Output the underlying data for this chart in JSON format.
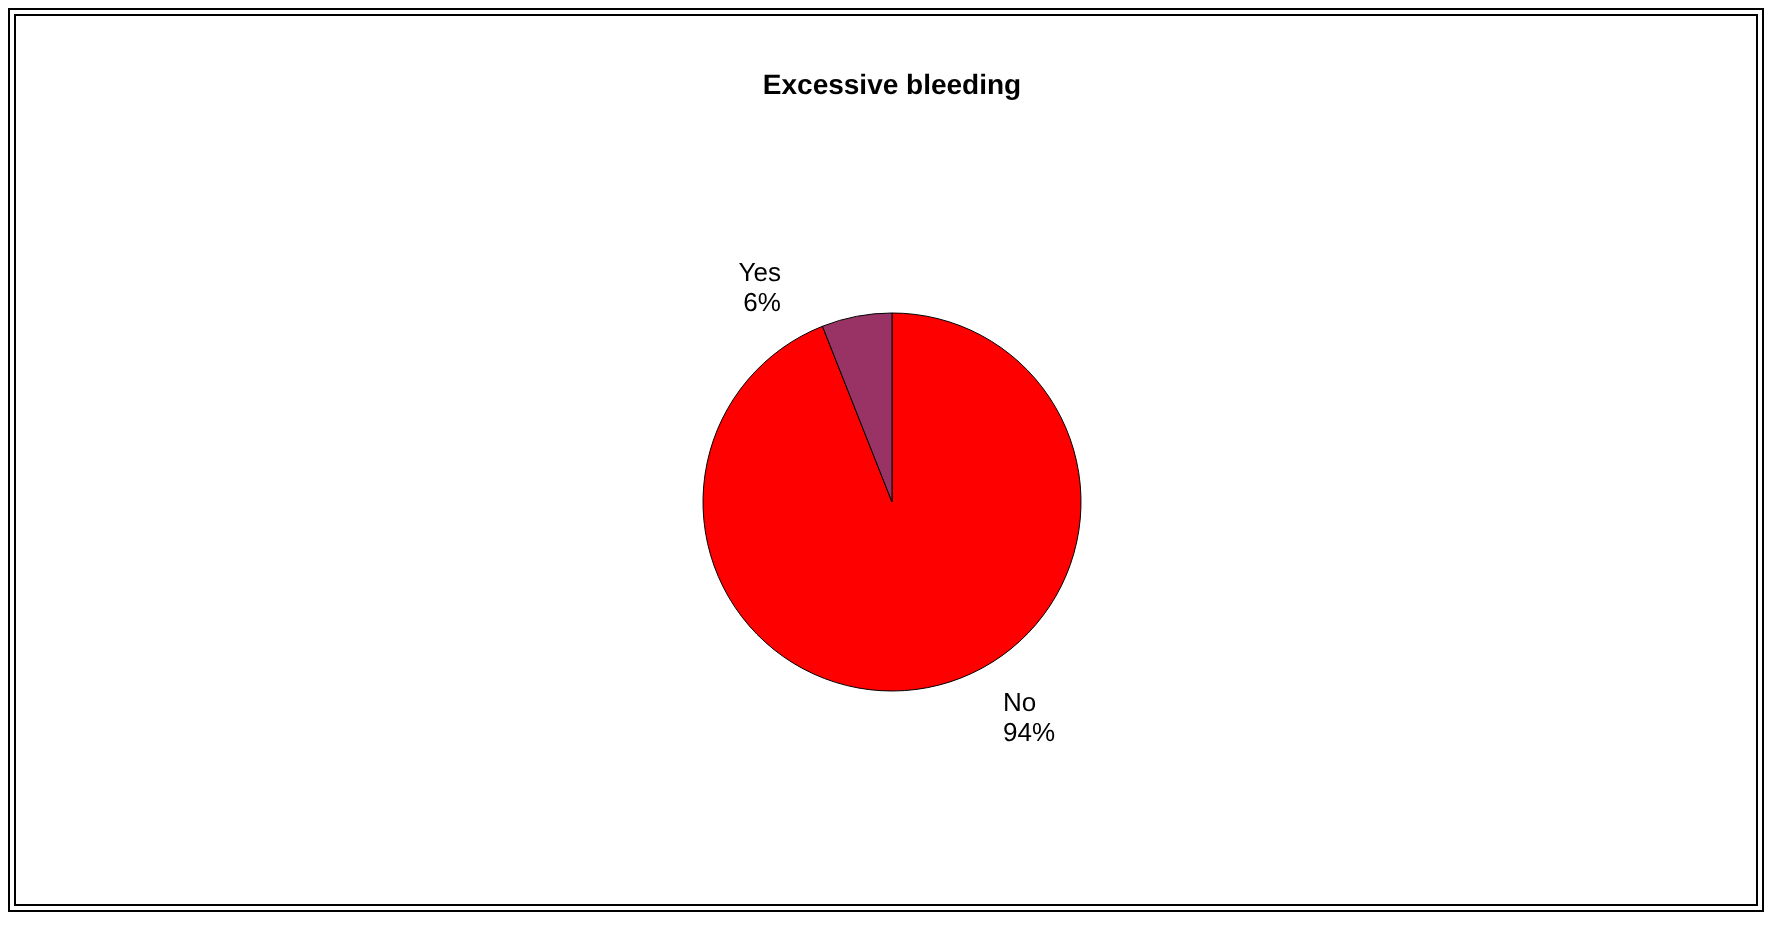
{
  "chart_data": {
    "type": "pie",
    "title": "Excessive bleeding",
    "categories": [
      "No",
      "Yes"
    ],
    "values": [
      94,
      6
    ],
    "colors": [
      "#ff0000",
      "#993366"
    ],
    "value_labels": [
      "94%",
      "6%"
    ],
    "legend": false
  }
}
